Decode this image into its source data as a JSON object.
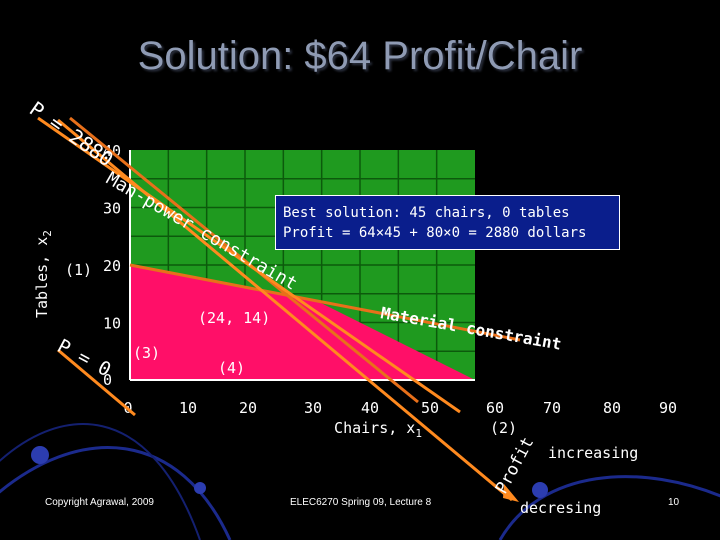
{
  "slide": {
    "title": "Solution: $64 Profit/Chair",
    "footer_left": "Copyright Agrawal, 2009",
    "footer_center": "ELEC6270 Spring 09, Lecture 8",
    "page_number": "10"
  },
  "colors": {
    "background": "#000000",
    "plot_area": "#1f9a1f",
    "feasible_region": "#ff0f68",
    "constraint_line": "#e8701a",
    "profit_line": "#ff8a1f",
    "callout_bg": "#0a1e8c",
    "title": "#8f9bb4"
  },
  "annotations": {
    "profit_top": "P = 2880",
    "profit_bottom": "P = 0",
    "profit_arrow_label": "Profit",
    "profit_increasing": "increasing",
    "profit_decreasing": "decresing",
    "manpower_label": "Man-power constraint",
    "material_label": "Material constraint",
    "callout_line1": "Best solution: 45 chairs, 0 tables",
    "callout_line2": "Profit = 64×45 + 80×0 = 2880 dollars",
    "point_24_14": "(24, 14)",
    "label_1": "(1)",
    "label_2": "(2)",
    "label_3": "(3)",
    "label_4": "(4)"
  },
  "chart_data": {
    "type": "area",
    "title": "Solution: $64 Profit/Chair",
    "xlabel": "Chairs, x1",
    "ylabel": "Tables, x2",
    "xlim": [
      0,
      90
    ],
    "ylim": [
      0,
      40
    ],
    "x_ticks": [
      "0",
      "10",
      "20",
      "30",
      "40",
      "50",
      "60",
      "70",
      "80",
      "90"
    ],
    "y_ticks": [
      "0",
      "10",
      "20",
      "30",
      "40"
    ],
    "grid": true,
    "feasible_region": [
      [
        0,
        0
      ],
      [
        0,
        20
      ],
      [
        24,
        14
      ],
      [
        45,
        0
      ]
    ],
    "constraint_lines": [
      {
        "name": "Man-power constraint",
        "points": [
          [
            -10,
            42.5
          ],
          [
            45,
            0
          ]
        ]
      },
      {
        "name": "Material constraint",
        "points": [
          [
            0,
            20
          ],
          [
            60,
            5
          ]
        ]
      }
    ],
    "profit_lines": [
      {
        "name": "P = 0",
        "points": [
          [
            -8,
            6.4
          ],
          [
            10,
            -8
          ]
        ]
      },
      {
        "name": "P = 2880",
        "points": [
          [
            -12,
            45.6
          ],
          [
            50,
            -4
          ]
        ]
      }
    ],
    "profit_direction": {
      "from": [
        68,
        -10
      ],
      "to": [
        8,
        46
      ]
    },
    "optimum": {
      "x": 45,
      "y": 0,
      "profit": 2880
    },
    "vertex": {
      "x": 24,
      "y": 14
    }
  }
}
